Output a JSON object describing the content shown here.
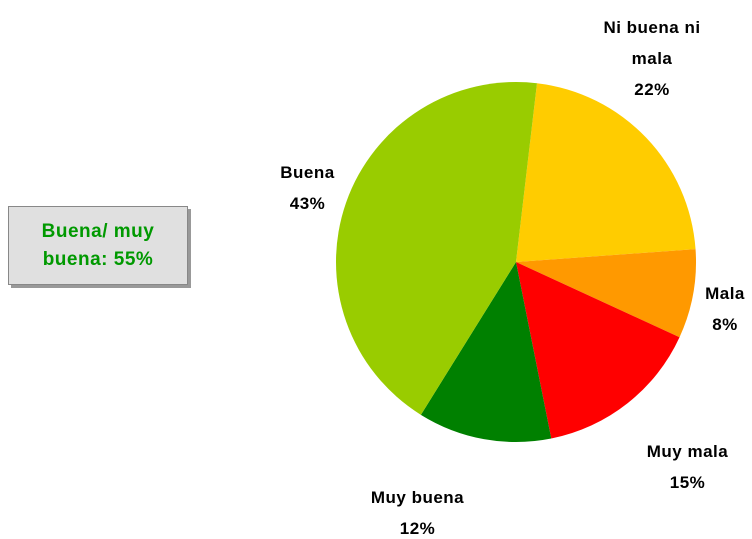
{
  "chart_data": {
    "type": "pie",
    "categories": [
      "Ni buena ni mala",
      "Mala",
      "Muy mala",
      "Muy buena",
      "Buena"
    ],
    "values": [
      22,
      8,
      15,
      12,
      43
    ],
    "value_labels": [
      "22%",
      "8%",
      "15%",
      "12%",
      "43%"
    ],
    "colors": [
      "#ffcc00",
      "#ff9900",
      "#ff0000",
      "#008000",
      "#99cc00"
    ],
    "annotation": "Buena/ muy buena: 55%"
  }
}
